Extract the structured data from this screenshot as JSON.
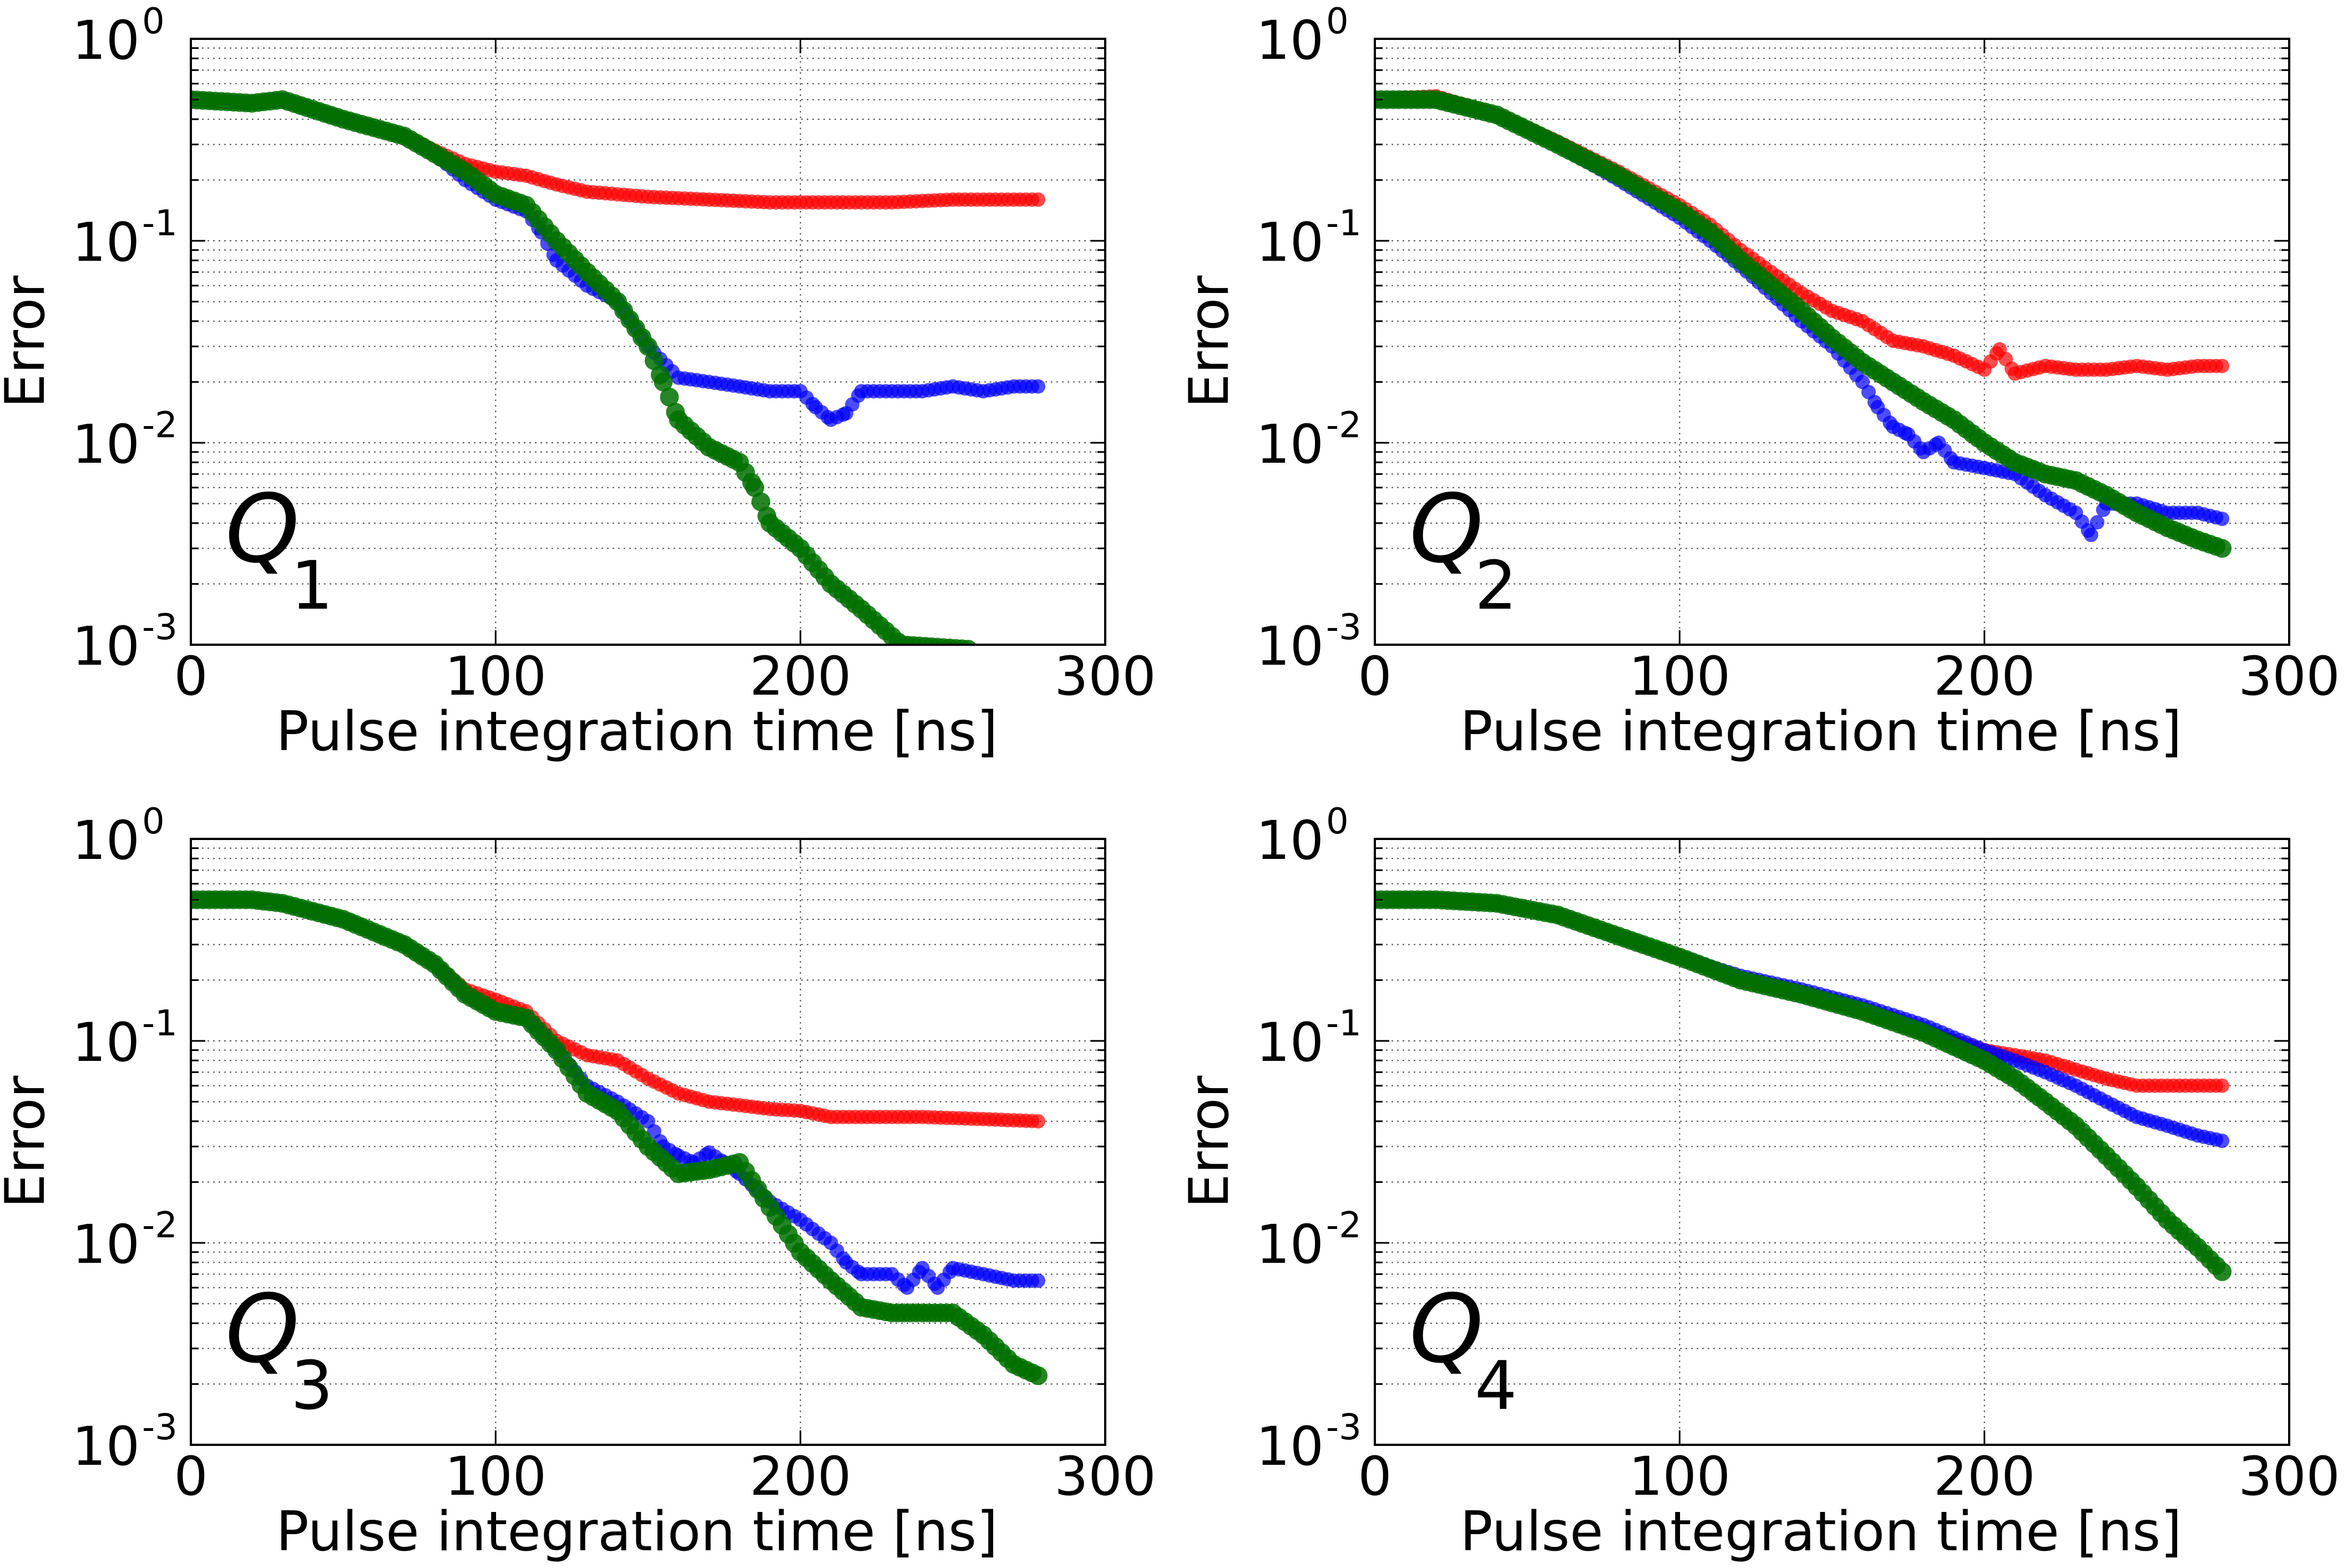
{
  "chart_data": [
    {
      "type": "scatter",
      "panel_label": "Q",
      "panel_index": "1",
      "xlabel": "Pulse integration time [ns]",
      "ylabel": "Error",
      "xlim": [
        0,
        300
      ],
      "ylim": [
        0.001,
        1
      ],
      "yscale": "log",
      "xticks": [
        "0",
        "100",
        "200",
        "300"
      ],
      "yticks": [
        {
          "base": "10",
          "exp": "0"
        },
        {
          "base": "10",
          "exp": "-1"
        },
        {
          "base": "10",
          "exp": "-2"
        },
        {
          "base": "10",
          "exp": "-3"
        }
      ],
      "grid": true,
      "series": [
        {
          "color": "#ff0000",
          "marker_size": 13,
          "opacity": 0.7,
          "x": [
            0,
            20,
            30,
            50,
            70,
            80,
            90,
            100,
            110,
            120,
            130,
            150,
            170,
            190,
            210,
            230,
            250,
            278
          ],
          "y": [
            0.5,
            0.48,
            0.5,
            0.4,
            0.33,
            0.28,
            0.24,
            0.22,
            0.21,
            0.19,
            0.175,
            0.165,
            0.16,
            0.155,
            0.155,
            0.155,
            0.16,
            0.16
          ]
        },
        {
          "color": "#0000ff",
          "marker_size": 13,
          "opacity": 0.7,
          "x": [
            0,
            20,
            30,
            50,
            70,
            80,
            90,
            100,
            110,
            115,
            120,
            130,
            140,
            150,
            160,
            170,
            180,
            190,
            200,
            205,
            210,
            215,
            220,
            230,
            240,
            250,
            260,
            270,
            278
          ],
          "y": [
            0.5,
            0.48,
            0.5,
            0.4,
            0.33,
            0.27,
            0.2,
            0.16,
            0.14,
            0.11,
            0.08,
            0.06,
            0.05,
            0.03,
            0.021,
            0.02,
            0.019,
            0.018,
            0.018,
            0.015,
            0.013,
            0.014,
            0.018,
            0.018,
            0.018,
            0.019,
            0.018,
            0.019,
            0.019
          ]
        },
        {
          "color": "#007000",
          "marker_size": 17,
          "opacity": 0.85,
          "x": [
            0,
            20,
            30,
            50,
            70,
            80,
            90,
            100,
            110,
            120,
            130,
            140,
            150,
            155,
            160,
            170,
            180,
            185,
            190,
            200,
            210,
            220,
            230,
            233,
            255
          ],
          "y": [
            0.5,
            0.48,
            0.5,
            0.4,
            0.33,
            0.27,
            0.22,
            0.17,
            0.15,
            0.1,
            0.07,
            0.05,
            0.03,
            0.02,
            0.013,
            0.0095,
            0.008,
            0.006,
            0.004,
            0.003,
            0.002,
            0.0015,
            0.0011,
            0.001,
            0.00095
          ]
        }
      ]
    },
    {
      "type": "scatter",
      "panel_label": "Q",
      "panel_index": "2",
      "xlabel": "Pulse integration time [ns]",
      "ylabel": "Error",
      "xlim": [
        0,
        300
      ],
      "ylim": [
        0.001,
        1
      ],
      "yscale": "log",
      "xticks": [
        "0",
        "100",
        "200",
        "300"
      ],
      "yticks": [
        {
          "base": "10",
          "exp": "0"
        },
        {
          "base": "10",
          "exp": "-1"
        },
        {
          "base": "10",
          "exp": "-2"
        },
        {
          "base": "10",
          "exp": "-3"
        }
      ],
      "grid": true,
      "series": [
        {
          "color": "#ff0000",
          "marker_size": 13,
          "opacity": 0.7,
          "x": [
            0,
            20,
            40,
            60,
            80,
            100,
            110,
            120,
            130,
            140,
            150,
            160,
            170,
            180,
            190,
            200,
            205,
            210,
            220,
            230,
            240,
            250,
            260,
            270,
            278
          ],
          "y": [
            0.5,
            0.52,
            0.42,
            0.31,
            0.22,
            0.15,
            0.12,
            0.09,
            0.07,
            0.055,
            0.045,
            0.04,
            0.032,
            0.03,
            0.027,
            0.023,
            0.029,
            0.022,
            0.024,
            0.023,
            0.023,
            0.024,
            0.023,
            0.024,
            0.024
          ]
        },
        {
          "color": "#0000ff",
          "marker_size": 13,
          "opacity": 0.7,
          "x": [
            0,
            20,
            40,
            60,
            80,
            100,
            110,
            120,
            130,
            140,
            150,
            160,
            165,
            170,
            175,
            180,
            185,
            190,
            200,
            210,
            220,
            230,
            235,
            240,
            250,
            260,
            270,
            278
          ],
          "y": [
            0.5,
            0.5,
            0.42,
            0.3,
            0.2,
            0.13,
            0.1,
            0.075,
            0.055,
            0.04,
            0.03,
            0.02,
            0.015,
            0.012,
            0.011,
            0.009,
            0.01,
            0.008,
            0.0075,
            0.007,
            0.0055,
            0.0045,
            0.0035,
            0.005,
            0.005,
            0.0045,
            0.0045,
            0.0042
          ]
        },
        {
          "color": "#007000",
          "marker_size": 17,
          "opacity": 0.85,
          "x": [
            0,
            20,
            40,
            60,
            80,
            100,
            110,
            120,
            130,
            140,
            150,
            160,
            170,
            180,
            190,
            200,
            210,
            220,
            230,
            240,
            250,
            260,
            270,
            278
          ],
          "y": [
            0.5,
            0.5,
            0.42,
            0.3,
            0.21,
            0.14,
            0.11,
            0.08,
            0.06,
            0.045,
            0.033,
            0.025,
            0.02,
            0.016,
            0.013,
            0.01,
            0.008,
            0.007,
            0.0065,
            0.0055,
            0.0045,
            0.0038,
            0.0033,
            0.003
          ]
        }
      ]
    },
    {
      "type": "scatter",
      "panel_label": "Q",
      "panel_index": "3",
      "xlabel": "Pulse integration time [ns]",
      "ylabel": "Error",
      "xlim": [
        0,
        300
      ],
      "ylim": [
        0.001,
        1
      ],
      "yscale": "log",
      "xticks": [
        "0",
        "100",
        "200",
        "300"
      ],
      "yticks": [
        {
          "base": "10",
          "exp": "0"
        },
        {
          "base": "10",
          "exp": "-1"
        },
        {
          "base": "10",
          "exp": "-2"
        },
        {
          "base": "10",
          "exp": "-3"
        }
      ],
      "grid": true,
      "series": [
        {
          "color": "#ff0000",
          "marker_size": 13,
          "opacity": 0.7,
          "x": [
            0,
            20,
            30,
            50,
            70,
            80,
            90,
            100,
            110,
            120,
            130,
            140,
            150,
            160,
            170,
            180,
            190,
            200,
            210,
            220,
            240,
            260,
            278
          ],
          "y": [
            0.5,
            0.5,
            0.48,
            0.4,
            0.3,
            0.24,
            0.18,
            0.16,
            0.14,
            0.1,
            0.085,
            0.08,
            0.065,
            0.055,
            0.05,
            0.048,
            0.046,
            0.045,
            0.042,
            0.042,
            0.042,
            0.041,
            0.04
          ]
        },
        {
          "color": "#0000ff",
          "marker_size": 13,
          "opacity": 0.7,
          "x": [
            0,
            20,
            30,
            50,
            70,
            80,
            90,
            100,
            110,
            120,
            130,
            140,
            150,
            155,
            160,
            165,
            170,
            175,
            180,
            190,
            200,
            210,
            215,
            220,
            230,
            235,
            240,
            245,
            250,
            260,
            270,
            278
          ],
          "y": [
            0.5,
            0.5,
            0.48,
            0.4,
            0.3,
            0.24,
            0.17,
            0.14,
            0.13,
            0.09,
            0.06,
            0.05,
            0.04,
            0.03,
            0.027,
            0.025,
            0.028,
            0.025,
            0.022,
            0.016,
            0.013,
            0.01,
            0.008,
            0.007,
            0.007,
            0.006,
            0.0075,
            0.006,
            0.0075,
            0.007,
            0.0065,
            0.0065
          ]
        },
        {
          "color": "#007000",
          "marker_size": 17,
          "opacity": 0.85,
          "x": [
            0,
            20,
            30,
            50,
            70,
            80,
            90,
            100,
            110,
            120,
            130,
            140,
            150,
            160,
            170,
            180,
            190,
            200,
            210,
            220,
            230,
            240,
            250,
            260,
            270,
            278
          ],
          "y": [
            0.5,
            0.5,
            0.48,
            0.4,
            0.3,
            0.24,
            0.17,
            0.14,
            0.13,
            0.09,
            0.055,
            0.045,
            0.03,
            0.022,
            0.023,
            0.025,
            0.015,
            0.009,
            0.0065,
            0.0048,
            0.0045,
            0.0045,
            0.0045,
            0.0035,
            0.0025,
            0.0022
          ]
        }
      ]
    },
    {
      "type": "scatter",
      "panel_label": "Q",
      "panel_index": "4",
      "xlabel": "Pulse integration time [ns]",
      "ylabel": "Error",
      "xlim": [
        0,
        300
      ],
      "ylim": [
        0.001,
        1
      ],
      "yscale": "log",
      "xticks": [
        "0",
        "100",
        "200",
        "300"
      ],
      "yticks": [
        {
          "base": "10",
          "exp": "0"
        },
        {
          "base": "10",
          "exp": "-1"
        },
        {
          "base": "10",
          "exp": "-2"
        },
        {
          "base": "10",
          "exp": "-3"
        }
      ],
      "grid": true,
      "series": [
        {
          "color": "#ff0000",
          "marker_size": 13,
          "opacity": 0.7,
          "x": [
            0,
            20,
            40,
            60,
            80,
            100,
            120,
            140,
            160,
            180,
            200,
            210,
            220,
            230,
            240,
            250,
            260,
            270,
            278
          ],
          "y": [
            0.5,
            0.5,
            0.48,
            0.42,
            0.33,
            0.26,
            0.2,
            0.17,
            0.14,
            0.11,
            0.09,
            0.085,
            0.08,
            0.072,
            0.065,
            0.06,
            0.06,
            0.06,
            0.06
          ]
        },
        {
          "color": "#0000ff",
          "marker_size": 13,
          "opacity": 0.7,
          "x": [
            0,
            20,
            40,
            60,
            80,
            100,
            120,
            140,
            160,
            180,
            200,
            210,
            220,
            230,
            240,
            250,
            260,
            270,
            278
          ],
          "y": [
            0.5,
            0.5,
            0.48,
            0.42,
            0.33,
            0.26,
            0.21,
            0.18,
            0.15,
            0.12,
            0.09,
            0.08,
            0.07,
            0.06,
            0.05,
            0.042,
            0.038,
            0.034,
            0.032
          ]
        },
        {
          "color": "#007000",
          "marker_size": 17,
          "opacity": 0.85,
          "x": [
            0,
            20,
            40,
            60,
            80,
            100,
            120,
            140,
            160,
            180,
            200,
            210,
            220,
            230,
            240,
            250,
            260,
            270,
            278
          ],
          "y": [
            0.5,
            0.5,
            0.48,
            0.42,
            0.33,
            0.26,
            0.2,
            0.17,
            0.14,
            0.11,
            0.08,
            0.065,
            0.05,
            0.038,
            0.027,
            0.019,
            0.013,
            0.0095,
            0.0072
          ]
        }
      ]
    }
  ]
}
